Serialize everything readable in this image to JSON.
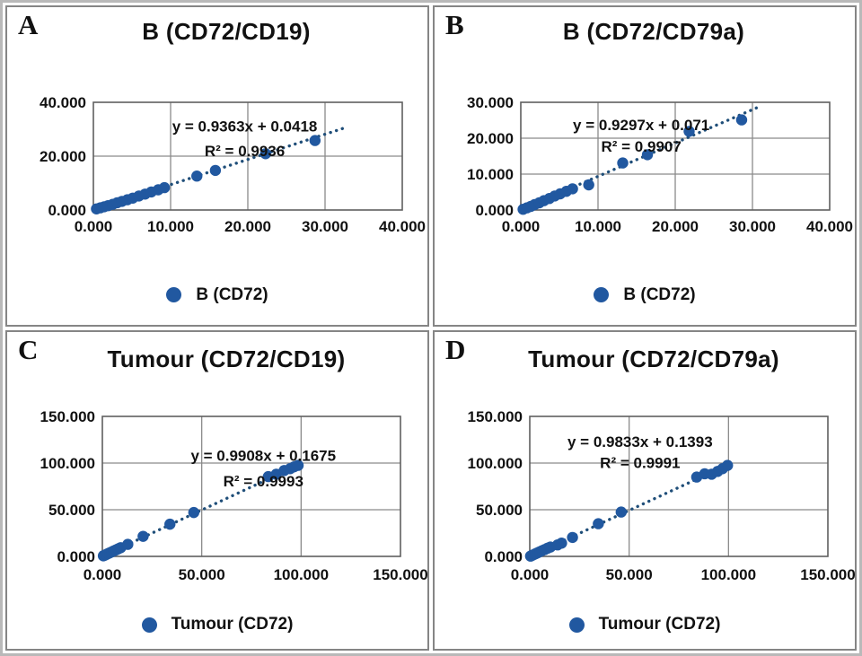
{
  "figure": {
    "colors": {
      "point": "#2158a0",
      "trendline": "#1f4e79",
      "grid": "#8a8a8a",
      "plot_border": "#5f5f5f",
      "panel_border": "#858585",
      "text": "#111111",
      "background": "#ffffff"
    },
    "panels": [
      {
        "id": "A",
        "label": "A",
        "title": "B（CD72/CD19）",
        "legend_label": "B（CD72）"
      },
      {
        "id": "B",
        "label": "B",
        "title": "B（CD72/CD79a）",
        "legend_label": "B（CD72）"
      },
      {
        "id": "C",
        "label": "C",
        "title": "Tumour（CD72/CD19）",
        "legend_label": "Tumour（CD72）"
      },
      {
        "id": "D",
        "label": "D",
        "title": "Tumour（CD72/CD79a）",
        "legend_label": "Tumour（CD72）"
      }
    ]
  },
  "chart_data": [
    {
      "type": "scatter",
      "title": "B（CD72/CD19）",
      "xlabel": "",
      "ylabel": "",
      "xlim": [
        0,
        40
      ],
      "ylim": [
        0,
        40
      ],
      "x_tick_labels": [
        "0.000",
        "10.000",
        "20.000",
        "30.000",
        "40.000"
      ],
      "x_tick_values": [
        0,
        10,
        20,
        30,
        40
      ],
      "y_tick_labels": [
        "0.000",
        "20.000",
        "40.000"
      ],
      "y_tick_values": [
        0,
        20,
        40
      ],
      "grid": true,
      "legend_position": "bottom",
      "series": [
        {
          "name": "B（CD72）",
          "points": [
            [
              0.4,
              0.4
            ],
            [
              0.9,
              0.8
            ],
            [
              1.4,
              1.2
            ],
            [
              1.9,
              1.6
            ],
            [
              2.5,
              2.1
            ],
            [
              3.1,
              2.7
            ],
            [
              3.7,
              3.2
            ],
            [
              4.4,
              3.8
            ],
            [
              5.1,
              4.4
            ],
            [
              5.9,
              5.2
            ],
            [
              6.7,
              5.9
            ],
            [
              7.5,
              6.7
            ],
            [
              8.4,
              7.5
            ],
            [
              9.2,
              8.3
            ],
            [
              13.4,
              12.6
            ],
            [
              15.8,
              14.7
            ],
            [
              22.3,
              20.9
            ],
            [
              28.7,
              25.8
            ]
          ]
        }
      ],
      "trendline": {
        "equation_label": "y = 0.9363x + 0.0418",
        "r2_label": "R² = 0.9936",
        "slope": 0.9363,
        "intercept": 0.0418,
        "r2": 0.9936,
        "x_range": [
          0.2,
          32.5
        ],
        "style": "dotted"
      }
    },
    {
      "type": "scatter",
      "title": "B（CD72/CD79a）",
      "xlabel": "",
      "ylabel": "",
      "xlim": [
        0,
        40
      ],
      "ylim": [
        0,
        30
      ],
      "x_tick_labels": [
        "0.000",
        "10.000",
        "20.000",
        "30.000",
        "40.000"
      ],
      "x_tick_values": [
        0,
        10,
        20,
        30,
        40
      ],
      "y_tick_labels": [
        "0.000",
        "10.000",
        "20.000",
        "30.000"
      ],
      "y_tick_values": [
        0,
        10,
        20,
        30
      ],
      "grid": true,
      "legend_position": "bottom",
      "series": [
        {
          "name": "B（CD72）",
          "points": [
            [
              0.3,
              0.2
            ],
            [
              0.8,
              0.6
            ],
            [
              1.3,
              1.0
            ],
            [
              1.8,
              1.5
            ],
            [
              2.4,
              2.0
            ],
            [
              3.0,
              2.6
            ],
            [
              3.7,
              3.2
            ],
            [
              4.4,
              3.9
            ],
            [
              5.1,
              4.5
            ],
            [
              5.9,
              5.2
            ],
            [
              6.7,
              5.9
            ],
            [
              8.8,
              7.0
            ],
            [
              13.2,
              13.1
            ],
            [
              16.4,
              15.4
            ],
            [
              21.8,
              21.9
            ],
            [
              28.6,
              25.1
            ]
          ]
        }
      ],
      "trendline": {
        "equation_label": "y = 0.9297x + 0.071",
        "r2_label": "R² = 0.9907",
        "slope": 0.9297,
        "intercept": 0.071,
        "r2": 0.9907,
        "x_range": [
          0.3,
          30.5
        ],
        "style": "dotted"
      }
    },
    {
      "type": "scatter",
      "title": "Tumour（CD72/CD19）",
      "xlabel": "",
      "ylabel": "",
      "xlim": [
        0,
        150
      ],
      "ylim": [
        0,
        150
      ],
      "x_tick_labels": [
        "0.000",
        "50.000",
        "100.000",
        "150.000"
      ],
      "x_tick_values": [
        0,
        50,
        100,
        150
      ],
      "y_tick_labels": [
        "0.000",
        "50.000",
        "100.000",
        "150.000"
      ],
      "y_tick_values": [
        0,
        50,
        100,
        150
      ],
      "grid": true,
      "legend_position": "bottom",
      "series": [
        {
          "name": "Tumour（CD72）",
          "points": [
            [
              0.5,
              0.6
            ],
            [
              1.2,
              1.2
            ],
            [
              2.0,
              2.1
            ],
            [
              2.9,
              3.0
            ],
            [
              3.8,
              3.9
            ],
            [
              4.8,
              4.9
            ],
            [
              5.8,
              5.9
            ],
            [
              6.9,
              7.0
            ],
            [
              8.0,
              8.1
            ],
            [
              9.2,
              9.3
            ],
            [
              12.8,
              12.9
            ],
            [
              20.5,
              21.5
            ],
            [
              34.0,
              34.5
            ],
            [
              46.0,
              47.0
            ],
            [
              83.5,
              85.5
            ],
            [
              87.5,
              88.0
            ],
            [
              91.5,
              92.0
            ],
            [
              94.5,
              94.0
            ],
            [
              96.5,
              96.0
            ],
            [
              98.5,
              97.5
            ]
          ]
        }
      ],
      "trendline": {
        "equation_label": "y = 0.9908x + 0.1675",
        "r2_label": "R² = 0.9993",
        "slope": 0.9908,
        "intercept": 0.1675,
        "r2": 0.9993,
        "x_range": [
          0.5,
          100.5
        ],
        "style": "dotted"
      }
    },
    {
      "type": "scatter",
      "title": "Tumour（CD72/CD79a）",
      "xlabel": "",
      "ylabel": "",
      "xlim": [
        0,
        150
      ],
      "ylim": [
        0,
        150
      ],
      "x_tick_labels": [
        "0.000",
        "50.000",
        "100.000",
        "150.000"
      ],
      "x_tick_values": [
        0,
        50,
        100,
        150
      ],
      "y_tick_labels": [
        "0.000",
        "50.000",
        "100.000",
        "150.000"
      ],
      "y_tick_values": [
        0,
        50,
        100,
        150
      ],
      "grid": true,
      "legend_position": "bottom",
      "series": [
        {
          "name": "Tumour（CD72）",
          "points": [
            [
              0.4,
              0.3
            ],
            [
              1.2,
              1.1
            ],
            [
              2.1,
              2.0
            ],
            [
              3.0,
              2.9
            ],
            [
              4.0,
              3.9
            ],
            [
              5.1,
              5.0
            ],
            [
              6.3,
              6.2
            ],
            [
              7.6,
              7.4
            ],
            [
              9.0,
              8.8
            ],
            [
              10.4,
              10.0
            ],
            [
              14.0,
              12.3
            ],
            [
              16.0,
              14.2
            ],
            [
              21.5,
              20.3
            ],
            [
              34.5,
              35.0
            ],
            [
              46.0,
              47.5
            ],
            [
              84.0,
              85.0
            ],
            [
              88.0,
              88.5
            ],
            [
              91.5,
              88.0
            ],
            [
              94.5,
              91.0
            ],
            [
              97.0,
              94.0
            ],
            [
              99.5,
              97.5
            ]
          ]
        }
      ],
      "trendline": {
        "equation_label": "y = 0.9833x + 0.1393",
        "r2_label": "R² = 0.9991",
        "slope": 0.9833,
        "intercept": 0.1393,
        "r2": 0.9991,
        "x_range": [
          0.5,
          101.0
        ],
        "style": "dotted"
      }
    }
  ]
}
